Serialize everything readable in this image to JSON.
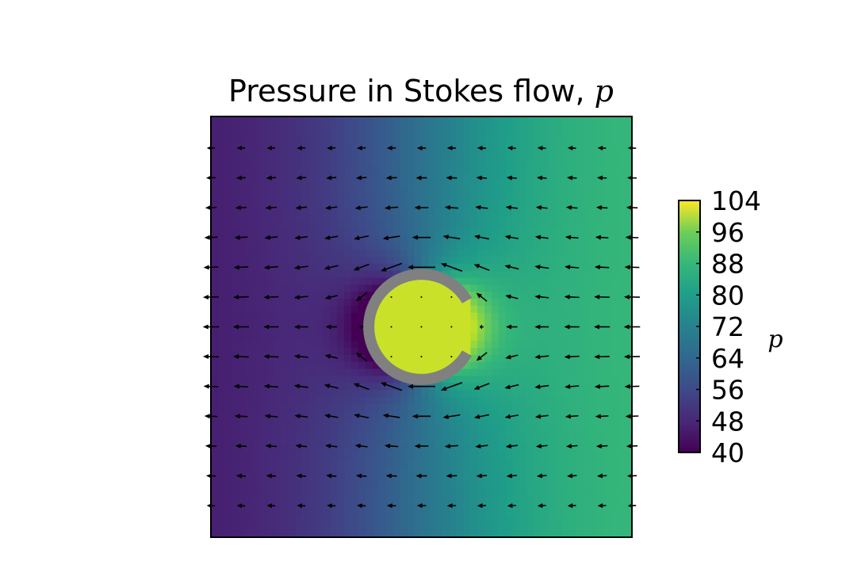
{
  "chart_data": {
    "type": "heatmap",
    "title": "Pressure in Stokes flow, ",
    "title_variable": "p",
    "colorbar": {
      "label": "p",
      "ticks": [
        "104",
        "96",
        "88",
        "80",
        "72",
        "64",
        "56",
        "48",
        "40"
      ],
      "range": [
        40,
        104
      ],
      "colormap": "viridis"
    },
    "field": {
      "x_range": [
        -1,
        1
      ],
      "y_range": [
        -1,
        1
      ],
      "obstacle": {
        "shape": "open ring (C-shape)",
        "center": [
          0,
          0
        ],
        "radius": 0.25,
        "opening": "right",
        "color": "#808080"
      },
      "pressure_left_far": 44,
      "pressure_right_far": 84,
      "pressure_inside_obstacle": 99
    },
    "quiver": {
      "description": "velocity arrows pointing leftward, deflected around the obstacle",
      "columns": 15,
      "rows": 13,
      "arrow_color": "#000000"
    }
  }
}
